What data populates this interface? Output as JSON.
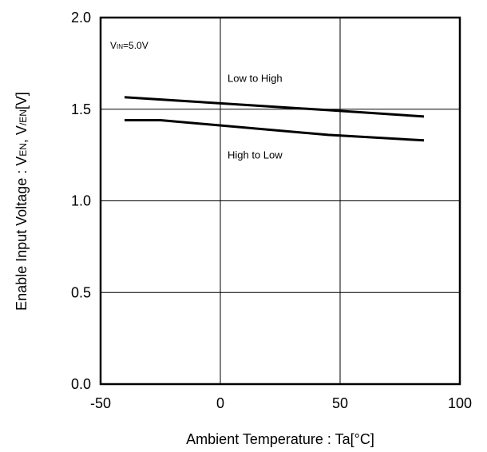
{
  "chart_data": {
    "type": "line",
    "title": "",
    "xlabel": "Ambient Temperature : Ta[°C]",
    "ylabel": {
      "prefix": "Enable Input Voltage : V",
      "sub1": "EN",
      "sep": ", V",
      "sub2": "/EN",
      "suffix": "[V]"
    },
    "xlim": [
      -50,
      100
    ],
    "ylim": [
      0.0,
      2.0
    ],
    "x_ticks": [
      -50,
      0,
      50,
      100
    ],
    "x_tick_labels": [
      "-50",
      "0",
      "50",
      "100"
    ],
    "y_ticks": [
      0.0,
      0.5,
      1.0,
      1.5,
      2.0
    ],
    "y_tick_labels": [
      "0.0",
      "0.5",
      "1.0",
      "1.5",
      "2.0"
    ],
    "grid": true,
    "condition": {
      "main": "V",
      "sub": "IN",
      "rest": "=5.0V"
    },
    "series": [
      {
        "name": "Low to High",
        "color": "#000000",
        "points": [
          [
            -40,
            1.565
          ],
          [
            45,
            1.495
          ],
          [
            85,
            1.46
          ]
        ]
      },
      {
        "name": "High to Low",
        "color": "#000000",
        "points": [
          [
            -40,
            1.44
          ],
          [
            -25,
            1.44
          ],
          [
            45,
            1.36
          ],
          [
            85,
            1.33
          ]
        ]
      }
    ],
    "annotations": [
      {
        "text": "Low to High",
        "x": 3,
        "y": 1.65
      },
      {
        "text": "High to Low",
        "x": 3,
        "y": 1.23
      }
    ]
  }
}
